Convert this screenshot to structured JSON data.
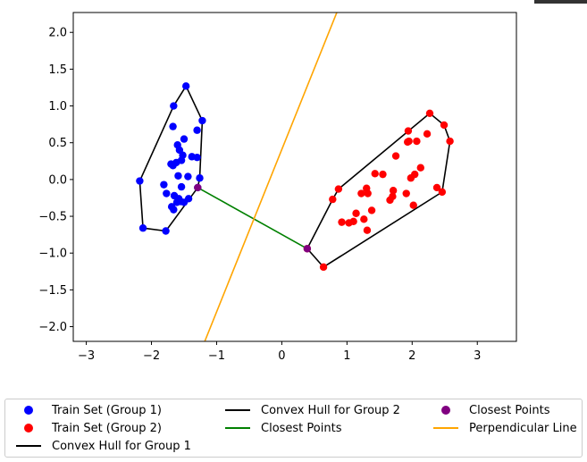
{
  "chart_data": {
    "type": "scatter",
    "title": "",
    "xlabel": "",
    "ylabel": "",
    "xlim": [
      -3.2,
      3.6
    ],
    "ylim": [
      -2.2,
      2.27
    ],
    "xticks": [
      -3,
      -2,
      -1,
      0,
      1,
      2,
      3
    ],
    "xtick_labels": [
      "−3",
      "−2",
      "−1",
      "0",
      "1",
      "2",
      "3"
    ],
    "yticks": [
      2.0,
      1.5,
      1.0,
      0.5,
      0.0,
      -0.5,
      -1.0,
      -1.5,
      -2.0
    ],
    "ytick_labels": [
      "2.0",
      "1.5",
      "1.0",
      "0.5",
      "0.0",
      "−0.5",
      "−1.0",
      "−1.5",
      "−2.0"
    ],
    "grid": false,
    "legend_position": "below plot, 3 columns",
    "series": [
      {
        "name": "Train Set (Group 1)",
        "kind": "scatter",
        "color": "#0000ff",
        "points": [
          [
            -2.18,
            -0.02
          ],
          [
            -2.13,
            -0.66
          ],
          [
            -1.78,
            -0.7
          ],
          [
            -1.66,
            1.0
          ],
          [
            -1.47,
            1.27
          ],
          [
            -1.22,
            0.8
          ],
          [
            -1.3,
            0.67
          ],
          [
            -1.5,
            0.55
          ],
          [
            -1.67,
            0.72
          ],
          [
            -1.6,
            0.47
          ],
          [
            -1.57,
            0.4
          ],
          [
            -1.52,
            0.33
          ],
          [
            -1.38,
            0.31
          ],
          [
            -1.3,
            0.3
          ],
          [
            -1.54,
            0.26
          ],
          [
            -1.62,
            0.23
          ],
          [
            -1.7,
            0.21
          ],
          [
            -1.67,
            0.19
          ],
          [
            -1.59,
            0.05
          ],
          [
            -1.44,
            0.04
          ],
          [
            -1.26,
            0.02
          ],
          [
            -1.81,
            -0.07
          ],
          [
            -1.54,
            -0.1
          ],
          [
            -1.77,
            -0.19
          ],
          [
            -1.65,
            -0.22
          ],
          [
            -1.58,
            -0.26
          ],
          [
            -1.43,
            -0.26
          ],
          [
            -1.55,
            -0.3
          ],
          [
            -1.61,
            -0.31
          ],
          [
            -1.69,
            -0.37
          ],
          [
            -1.66,
            -0.41
          ],
          [
            -1.29,
            -0.11
          ],
          [
            -1.5,
            -0.31
          ]
        ]
      },
      {
        "name": "Train Set (Group 2)",
        "kind": "scatter",
        "color": "#ff0000",
        "points": [
          [
            0.39,
            -0.94
          ],
          [
            0.64,
            -1.19
          ],
          [
            0.78,
            -0.27
          ],
          [
            0.87,
            -0.13
          ],
          [
            0.92,
            -0.58
          ],
          [
            1.03,
            -0.59
          ],
          [
            1.1,
            -0.57
          ],
          [
            1.14,
            -0.46
          ],
          [
            1.22,
            -0.19
          ],
          [
            1.26,
            -0.54
          ],
          [
            1.3,
            -0.12
          ],
          [
            1.31,
            -0.69
          ],
          [
            1.32,
            -0.19
          ],
          [
            1.38,
            -0.42
          ],
          [
            1.43,
            0.08
          ],
          [
            1.55,
            0.07
          ],
          [
            1.66,
            -0.28
          ],
          [
            1.7,
            -0.23
          ],
          [
            1.71,
            -0.15
          ],
          [
            1.75,
            0.32
          ],
          [
            1.91,
            -0.19
          ],
          [
            1.93,
            0.51
          ],
          [
            1.94,
            0.66
          ],
          [
            1.95,
            0.52
          ],
          [
            1.98,
            0.02
          ],
          [
            2.02,
            -0.35
          ],
          [
            2.04,
            0.07
          ],
          [
            2.07,
            0.52
          ],
          [
            2.13,
            0.16
          ],
          [
            2.23,
            0.62
          ],
          [
            2.27,
            0.9
          ],
          [
            2.38,
            -0.11
          ],
          [
            2.46,
            -0.17
          ],
          [
            2.49,
            0.74
          ],
          [
            2.58,
            0.52
          ]
        ]
      },
      {
        "name": "Convex Hull for Group 1",
        "kind": "line",
        "color": "#000000",
        "points": [
          [
            -2.18,
            -0.02
          ],
          [
            -2.13,
            -0.66
          ],
          [
            -1.78,
            -0.7
          ],
          [
            -1.29,
            -0.11
          ],
          [
            -1.26,
            0.02
          ],
          [
            -1.22,
            0.8
          ],
          [
            -1.47,
            1.27
          ],
          [
            -1.66,
            1.0
          ],
          [
            -2.18,
            -0.02
          ]
        ]
      },
      {
        "name": "Convex Hull for Group 2",
        "kind": "line",
        "color": "#000000",
        "points": [
          [
            0.39,
            -0.94
          ],
          [
            0.64,
            -1.19
          ],
          [
            2.46,
            -0.17
          ],
          [
            2.58,
            0.52
          ],
          [
            2.49,
            0.74
          ],
          [
            2.27,
            0.9
          ],
          [
            0.87,
            -0.13
          ],
          [
            0.78,
            -0.27
          ],
          [
            0.39,
            -0.94
          ]
        ]
      },
      {
        "name": "Closest Points",
        "kind": "line",
        "color": "#008000",
        "points": [
          [
            -1.29,
            -0.11
          ],
          [
            0.39,
            -0.94
          ]
        ]
      },
      {
        "name": "Closest Points",
        "kind": "scatter",
        "color": "#800080",
        "points": [
          [
            -1.29,
            -0.11
          ],
          [
            0.39,
            -0.94
          ]
        ]
      },
      {
        "name": "Perpendicular Line",
        "kind": "line",
        "color": "#ffa500",
        "points": [
          [
            -1.3,
            -2.46
          ],
          [
            0.93,
            2.46
          ]
        ]
      }
    ]
  },
  "legend": {
    "entries": [
      {
        "label": "Train Set (Group 1)",
        "marker": "dot",
        "color": "#0000ff"
      },
      {
        "label": "Train Set (Group 2)",
        "marker": "dot",
        "color": "#ff0000"
      },
      {
        "label": "Convex Hull for Group 1",
        "marker": "line",
        "color": "#000000"
      },
      {
        "label": "Convex Hull for Group 2",
        "marker": "line",
        "color": "#000000"
      },
      {
        "label": "Closest Points",
        "marker": "line",
        "color": "#008000"
      },
      {
        "label": "Closest Points",
        "marker": "dot",
        "color": "#800080"
      },
      {
        "label": "Perpendicular Line",
        "marker": "line",
        "color": "#ffa500"
      }
    ]
  }
}
